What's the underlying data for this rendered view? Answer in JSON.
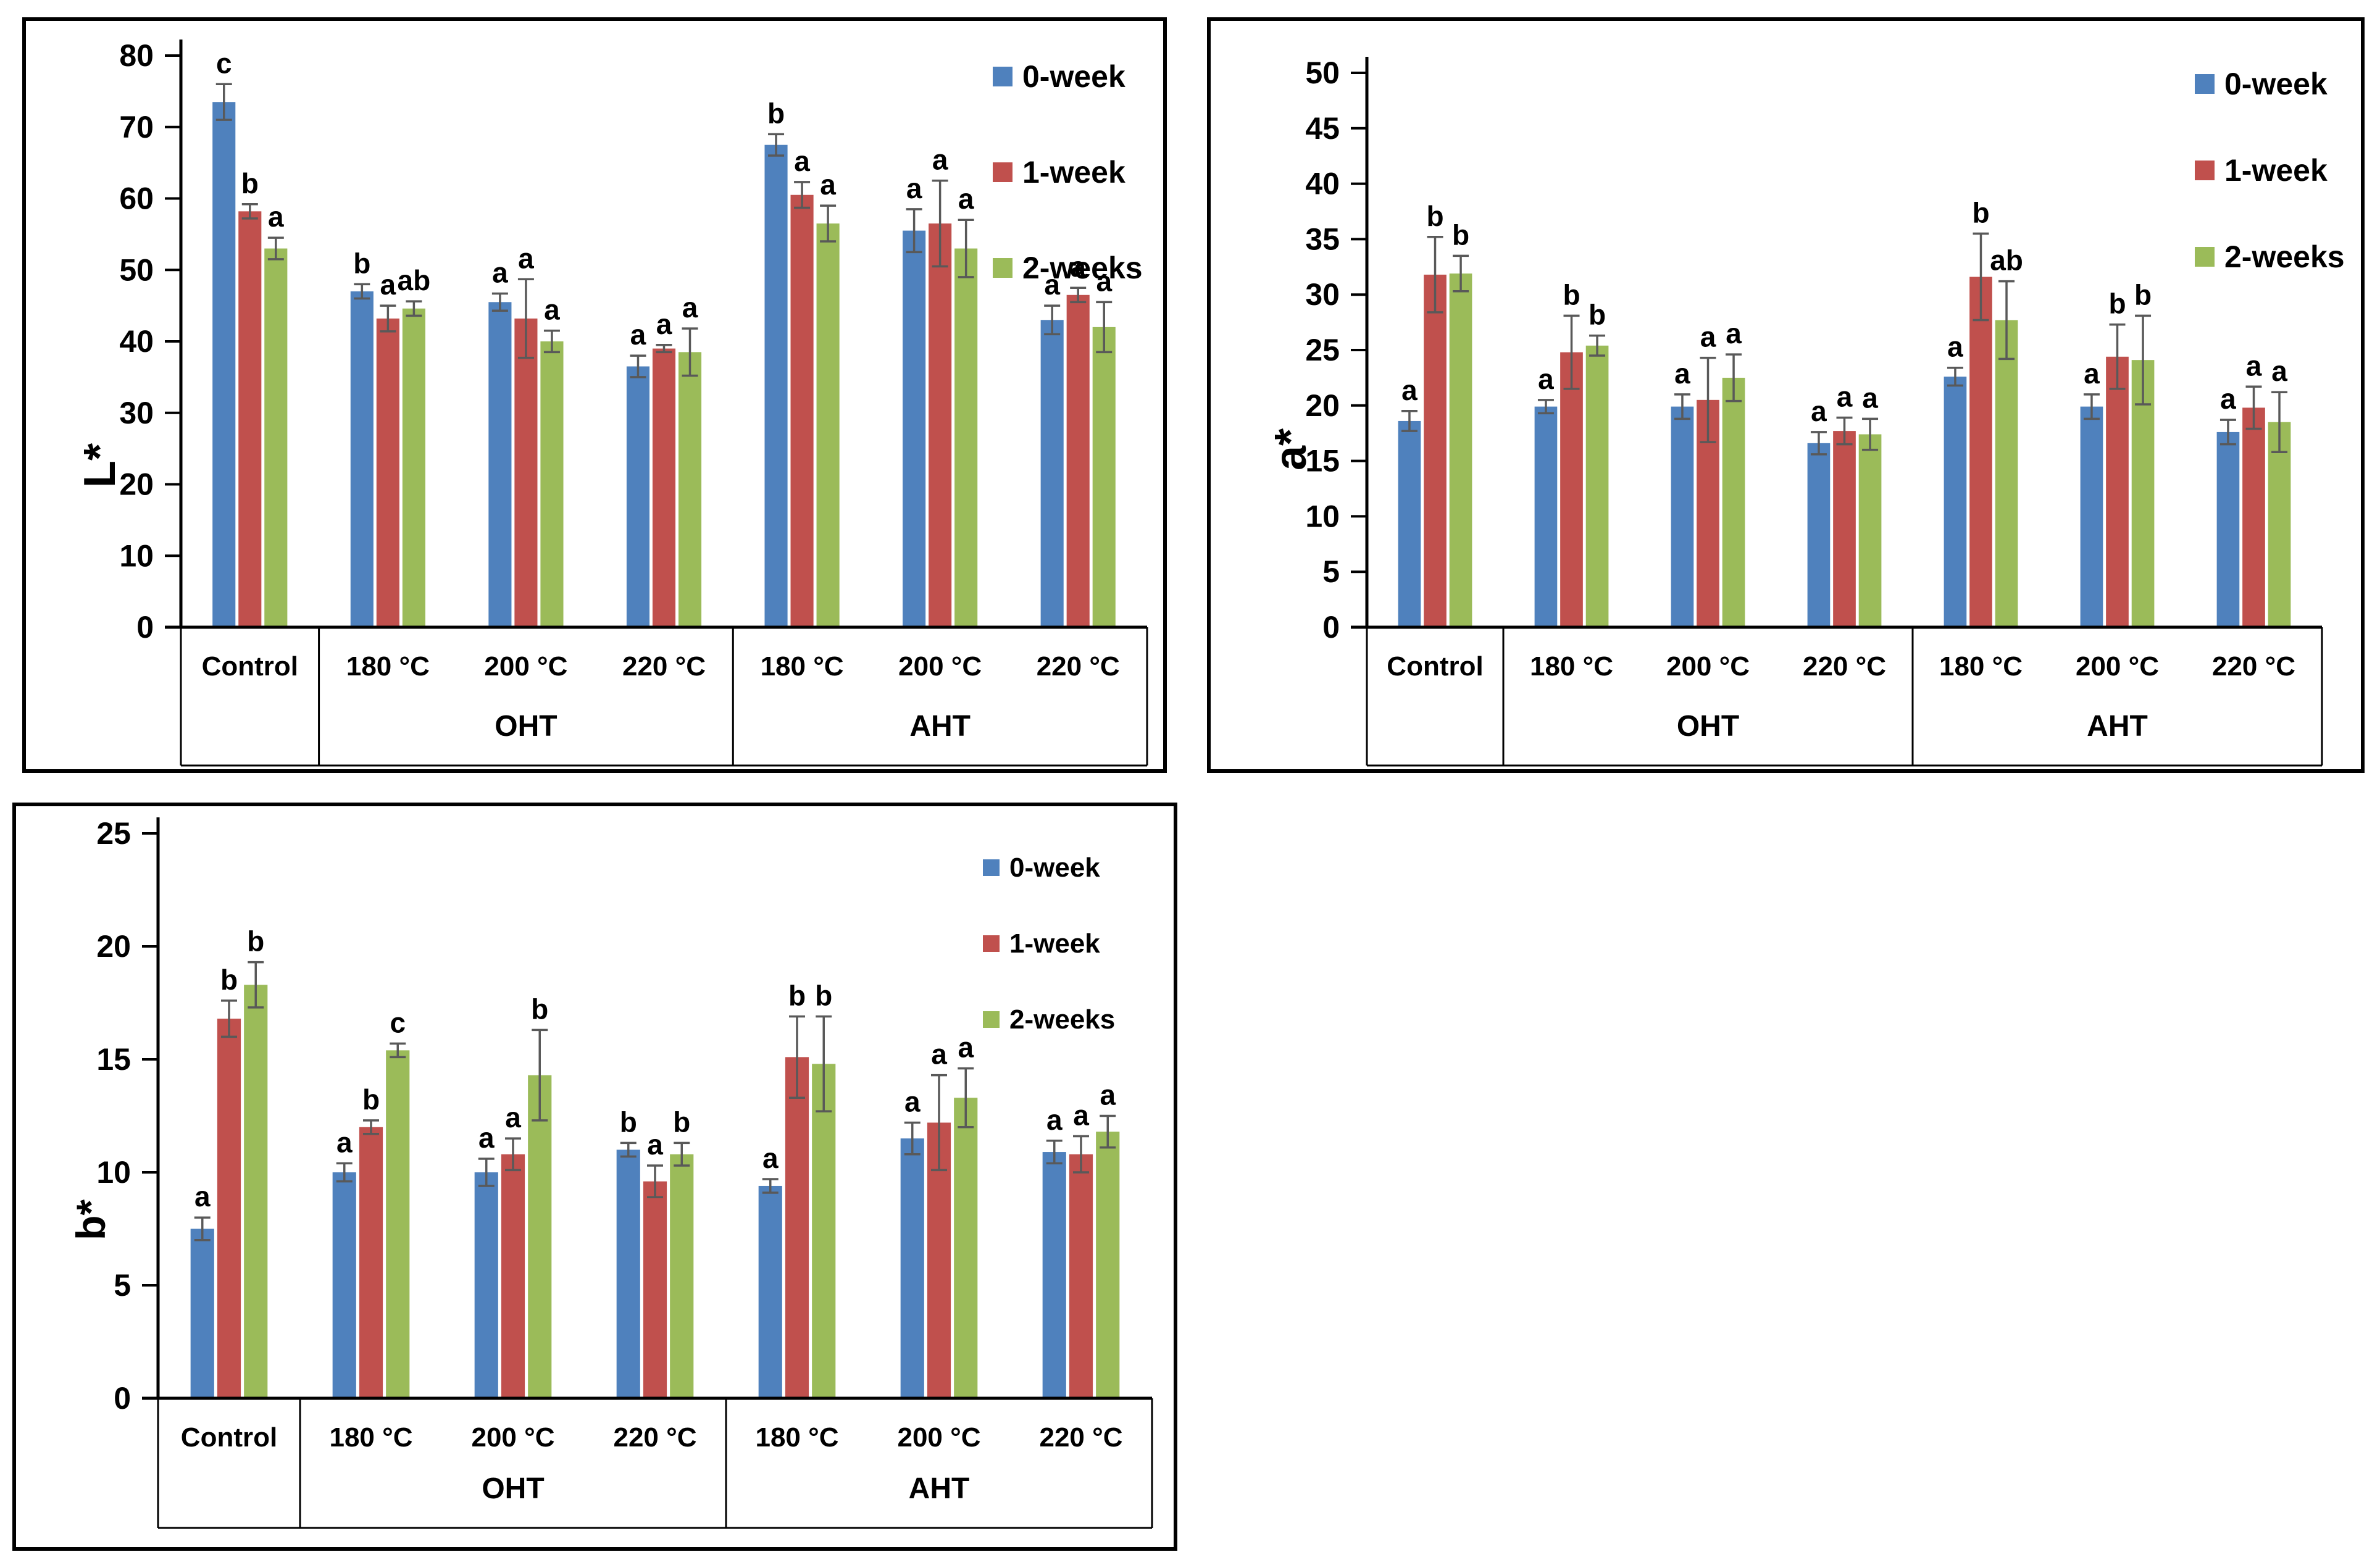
{
  "figure": {
    "description": "Three grouped bar charts of wood color parameters L*, a*, b* for Control, OHT and AHT heat treatments at 180/200/220 C over 0, 1 and 2 weeks",
    "background": "#ffffff",
    "border_color": "#000000"
  },
  "colors": {
    "series": [
      "#4F81BD",
      "#C0504D",
      "#9BBB59"
    ],
    "error_bar": "#595959",
    "axis": "#000000",
    "text": "#000000"
  },
  "legend": {
    "items": [
      "0-week",
      "1-week",
      "2-weeks"
    ],
    "position": "top-right"
  },
  "chart_data": [
    {
      "type": "bar",
      "title": "",
      "xlabel": "",
      "ylabel": "L*",
      "ylim": [
        0,
        80
      ],
      "ytick_step": 10,
      "ytick_labels": [
        "0",
        "10",
        "20",
        "30",
        "40",
        "50",
        "60",
        "70",
        "80"
      ],
      "grid": false,
      "legend_position": "top-right",
      "categories": [
        "Control",
        "180 °C",
        "200 °C",
        "220 °C",
        "180 °C",
        "200 °C",
        "220 °C"
      ],
      "group_row": [
        {
          "label": "",
          "span": 1
        },
        {
          "label": "OHT",
          "span": 3
        },
        {
          "label": "AHT",
          "span": 3
        }
      ],
      "series": [
        {
          "name": "0-week",
          "color": "#4F81BD",
          "values": [
            73.5,
            47.0,
            45.5,
            36.5,
            67.5,
            55.5,
            43.0
          ],
          "errors": [
            2.5,
            1.0,
            1.2,
            1.5,
            1.5,
            3.0,
            2.0
          ],
          "letters": [
            "c",
            "b",
            "a",
            "a",
            "b",
            "a",
            "a"
          ]
        },
        {
          "name": "1-week",
          "color": "#C0504D",
          "values": [
            58.2,
            43.2,
            43.2,
            39.0,
            60.5,
            56.5,
            46.5
          ],
          "errors": [
            1.0,
            1.8,
            5.5,
            0.5,
            1.8,
            6.0,
            1.0
          ],
          "letters": [
            "b",
            "a",
            "a",
            "a",
            "a",
            "a",
            "a"
          ]
        },
        {
          "name": "2-weeks",
          "color": "#9BBB59",
          "values": [
            53.0,
            44.6,
            40.0,
            38.5,
            56.5,
            53.0,
            42.0
          ],
          "errors": [
            1.5,
            1.0,
            1.5,
            3.3,
            2.5,
            4.0,
            3.5
          ],
          "letters": [
            "a",
            "ab",
            "a",
            "a",
            "a",
            "a",
            "a"
          ]
        }
      ]
    },
    {
      "type": "bar",
      "title": "",
      "xlabel": "",
      "ylabel": "a*",
      "ylim": [
        0,
        50
      ],
      "ytick_step": 5,
      "ytick_labels": [
        "0",
        "5",
        "10",
        "15",
        "20",
        "25",
        "30",
        "35",
        "40",
        "45",
        "50"
      ],
      "grid": false,
      "legend_position": "top-right",
      "categories": [
        "Control",
        "180 °C",
        "200 °C",
        "220 °C",
        "180 °C",
        "200 °C",
        "220 °C"
      ],
      "group_row": [
        {
          "label": "",
          "span": 1
        },
        {
          "label": "OHT",
          "span": 3
        },
        {
          "label": "AHT",
          "span": 3
        }
      ],
      "series": [
        {
          "name": "0-week",
          "color": "#4F81BD",
          "values": [
            18.6,
            19.9,
            19.9,
            16.6,
            22.6,
            19.9,
            17.6
          ],
          "errors": [
            0.9,
            0.6,
            1.1,
            1.0,
            0.8,
            1.1,
            1.1
          ],
          "letters": [
            "a",
            "a",
            "a",
            "a",
            "a",
            "a",
            "a"
          ]
        },
        {
          "name": "1-week",
          "color": "#C0504D",
          "values": [
            31.8,
            24.8,
            20.5,
            17.7,
            31.6,
            24.4,
            19.8
          ],
          "errors": [
            3.4,
            3.3,
            3.8,
            1.2,
            3.9,
            2.9,
            1.9
          ],
          "letters": [
            "b",
            "b",
            "a",
            "a",
            "b",
            "b",
            "a"
          ]
        },
        {
          "name": "2-weeks",
          "color": "#9BBB59",
          "values": [
            31.9,
            25.4,
            22.5,
            17.4,
            27.7,
            24.1,
            18.5
          ],
          "errors": [
            1.6,
            0.9,
            2.1,
            1.4,
            3.5,
            4.0,
            2.7
          ],
          "letters": [
            "b",
            "b",
            "a",
            "a",
            "ab",
            "b",
            "a"
          ]
        }
      ]
    },
    {
      "type": "bar",
      "title": "",
      "xlabel": "",
      "ylabel": "b*",
      "ylim": [
        0,
        25
      ],
      "ytick_step": 5,
      "ytick_labels": [
        "0",
        "5",
        "10",
        "15",
        "20",
        "25"
      ],
      "grid": false,
      "legend_position": "top-right",
      "categories": [
        "Control",
        "180 °C",
        "200 °C",
        "220 °C",
        "180 °C",
        "200 °C",
        "220 °C"
      ],
      "group_row": [
        {
          "label": "",
          "span": 1
        },
        {
          "label": "OHT",
          "span": 3
        },
        {
          "label": "AHT",
          "span": 3
        }
      ],
      "series": [
        {
          "name": "0-week",
          "color": "#4F81BD",
          "values": [
            7.5,
            10.0,
            10.0,
            11.0,
            9.4,
            11.5,
            10.9
          ],
          "errors": [
            0.5,
            0.4,
            0.6,
            0.3,
            0.3,
            0.7,
            0.5
          ],
          "letters": [
            "a",
            "a",
            "a",
            "b",
            "a",
            "a",
            "a"
          ]
        },
        {
          "name": "1-week",
          "color": "#C0504D",
          "values": [
            16.8,
            12.0,
            10.8,
            9.6,
            15.1,
            12.2,
            10.8
          ],
          "errors": [
            0.8,
            0.3,
            0.7,
            0.7,
            1.8,
            2.1,
            0.8
          ],
          "letters": [
            "b",
            "b",
            "a",
            "a",
            "b",
            "a",
            "a"
          ]
        },
        {
          "name": "2-weeks",
          "color": "#9BBB59",
          "values": [
            18.3,
            15.4,
            14.3,
            10.8,
            14.8,
            13.3,
            11.8
          ],
          "errors": [
            1.0,
            0.3,
            2.0,
            0.5,
            2.1,
            1.3,
            0.7
          ],
          "letters": [
            "b",
            "c",
            "b",
            "b",
            "b",
            "a",
            "a"
          ]
        }
      ]
    }
  ]
}
